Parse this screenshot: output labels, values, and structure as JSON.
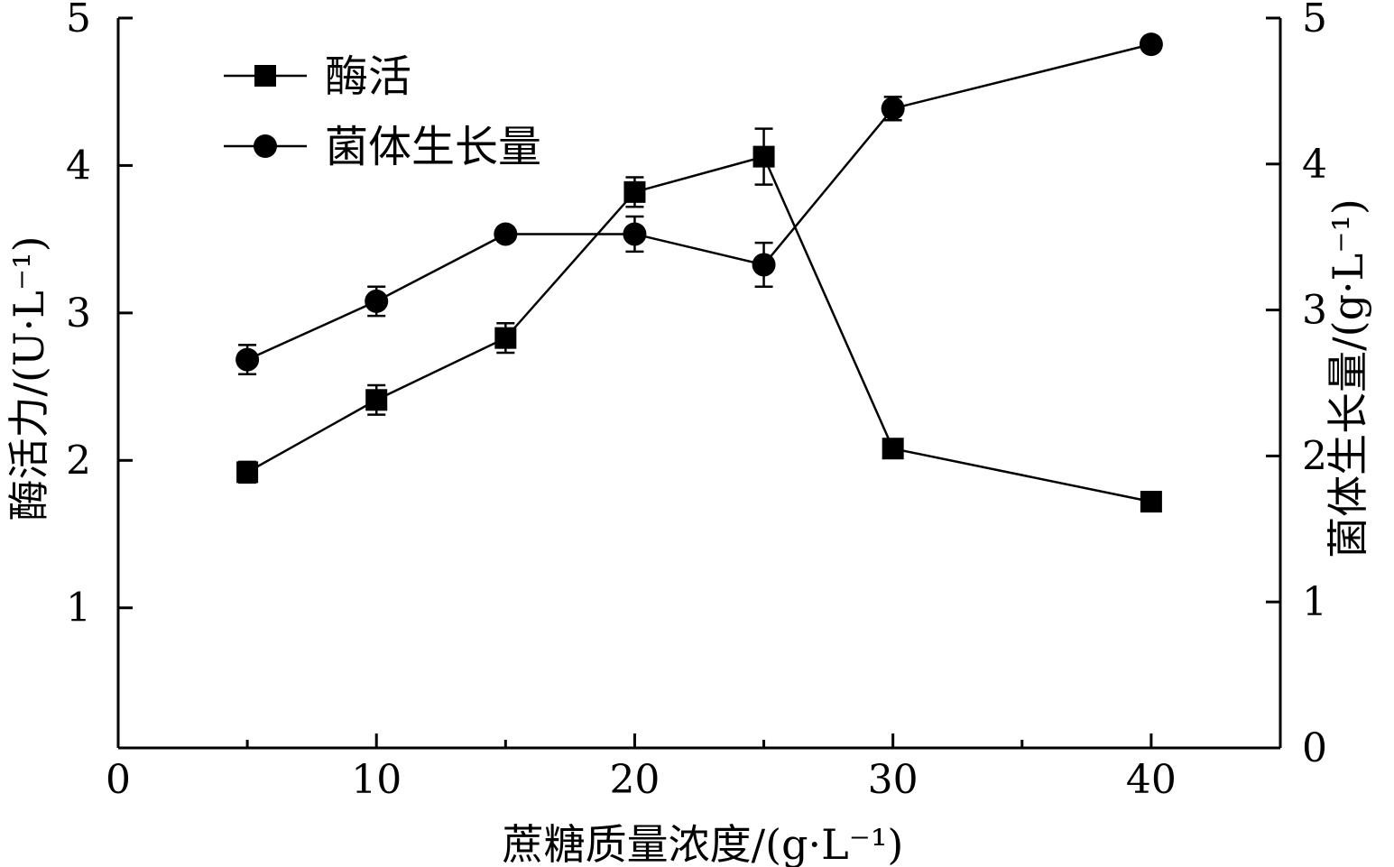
{
  "chart_data": {
    "type": "line",
    "xlabel": "蔗糖质量浓度/(g·L⁻¹)",
    "ylabel_left": "酶活力/(U·L⁻¹)",
    "ylabel_right": "菌体生长量/(g·L⁻¹)",
    "xlim": [
      0,
      45
    ],
    "ylim_left": [
      0.05,
      5
    ],
    "ylim_right": [
      0,
      5
    ],
    "x_ticks": [
      0,
      10,
      20,
      30,
      40
    ],
    "y_left_ticks": [
      1,
      2,
      3,
      4,
      5
    ],
    "y_right_ticks": [
      0,
      1,
      2,
      3,
      4,
      5
    ],
    "grid": false,
    "legend_position": "top-left",
    "series": [
      {
        "name": "酶活",
        "marker": "square",
        "axis": "left",
        "x": [
          5,
          10,
          15,
          20,
          25,
          30,
          40
        ],
        "y": [
          1.92,
          2.41,
          2.83,
          3.82,
          4.06,
          2.08,
          1.72
        ],
        "err": [
          0.07,
          0.1,
          0.1,
          0.1,
          0.19,
          0.04,
          0.06
        ]
      },
      {
        "name": "菌体生长量",
        "marker": "circle",
        "axis": "right",
        "x": [
          5,
          10,
          15,
          20,
          25,
          30,
          40
        ],
        "y": [
          2.66,
          3.06,
          3.52,
          3.52,
          3.31,
          4.38,
          4.82
        ],
        "err": [
          0.1,
          0.1,
          0.03,
          0.12,
          0.15,
          0.08,
          0.04
        ]
      }
    ]
  }
}
